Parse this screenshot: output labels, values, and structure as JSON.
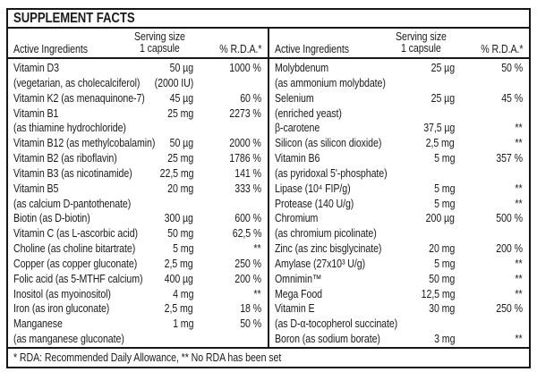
{
  "title": "SUPPLEMENT FACTS",
  "columns": {
    "ingredients": "Active Ingredients",
    "serving_line1": "Serving size",
    "serving_line2": "1 capsule",
    "rda": "% R.D.A.*"
  },
  "footnote": "* RDA: Recommended Daily Allowance, ** No RDA has been set",
  "colors": {
    "border": "#161616",
    "text": "#1b1b1b",
    "background": "#ffffff"
  },
  "left": {
    "rows": [
      {
        "name": "Vitamin D3",
        "amount": "50 µg",
        "rda": "1000 %"
      },
      {
        "name": "(vegetarian, as cholecalciferol)",
        "amount": "(2000 IU)",
        "rda": ""
      },
      {
        "name": "Vitamin K2 (as menaquinone-7)",
        "amount": "45 µg",
        "rda": "60 %"
      },
      {
        "name": "Vitamin B1",
        "amount": "25 mg",
        "rda": "2273 %"
      },
      {
        "name": "(as thiamine hydrochloride)",
        "amount": "",
        "rda": ""
      },
      {
        "name": "Vitamin B12 (as methylcobalamin)",
        "amount": "50 µg",
        "rda": "2000 %"
      },
      {
        "name": "Vitamin B2 (as riboflavin)",
        "amount": "25 mg",
        "rda": "1786 %"
      },
      {
        "name": "Vitamin B3 (as nicotinamide)",
        "amount": "22,5 mg",
        "rda": "141 %"
      },
      {
        "name": "Vitamin B5",
        "amount": "20 mg",
        "rda": "333 %"
      },
      {
        "name": "(as calcium D-pantothenate)",
        "amount": "",
        "rda": ""
      },
      {
        "name": "Biotin (as D-biotin)",
        "amount": "300 µg",
        "rda": "600 %"
      },
      {
        "name": "Vitamin C (as L-ascorbic acid)",
        "amount": "50 mg",
        "rda": "62,5 %"
      },
      {
        "name": "Choline (as choline bitartrate)",
        "amount": "5 mg",
        "rda": "**"
      },
      {
        "name": "Copper (as copper gluconate)",
        "amount": "2,5 mg",
        "rda": "250 %"
      },
      {
        "name": "Folic acid (as 5-MTHF calcium)",
        "amount": "400 µg",
        "rda": "200 %"
      },
      {
        "name": "Inositol (as myoinositol)",
        "amount": "4 mg",
        "rda": "**"
      },
      {
        "name": "Iron (as iron gluconate)",
        "amount": "2,5 mg",
        "rda": "18 %"
      },
      {
        "name": "Manganese",
        "amount": "1 mg",
        "rda": "50 %"
      },
      {
        "name": "(as manganese gluconate)",
        "amount": "",
        "rda": ""
      }
    ]
  },
  "right": {
    "rows": [
      {
        "name": "Molybdenum",
        "amount": "25 µg",
        "rda": "50 %"
      },
      {
        "name": "(as ammonium molybdate)",
        "amount": "",
        "rda": ""
      },
      {
        "name": "Selenium",
        "amount": "25 µg",
        "rda": "45 %"
      },
      {
        "name": "(enriched yeast)",
        "amount": "",
        "rda": ""
      },
      {
        "name": "β-carotene",
        "amount": "37,5 µg",
        "rda": "**"
      },
      {
        "name": "Silicon (as silicon dioxide)",
        "amount": "2,5 mg",
        "rda": "**"
      },
      {
        "name": "Vitamin B6",
        "amount": "5 mg",
        "rda": "357 %"
      },
      {
        "name": "(as pyridoxal 5'-phosphate)",
        "amount": "",
        "rda": ""
      },
      {
        "name": "Lipase (10⁴ FIP/g)",
        "amount": "5 mg",
        "rda": "**"
      },
      {
        "name": "Protease (140 U/g)",
        "amount": "5 mg",
        "rda": "**"
      },
      {
        "name": "Chromium",
        "amount": "200 µg",
        "rda": "500 %"
      },
      {
        "name": "(as chromium picolinate)",
        "amount": "",
        "rda": ""
      },
      {
        "name": "Zinc (as zinc bisglycinate)",
        "amount": "20 mg",
        "rda": "200 %"
      },
      {
        "name": "Amylase (27x10³ U/g)",
        "amount": "5 mg",
        "rda": "**"
      },
      {
        "name": "Omnimin™",
        "amount": "50 mg",
        "rda": "**"
      },
      {
        "name": "Mega Food",
        "amount": "12,5 mg",
        "rda": "**"
      },
      {
        "name": "Vitamin E",
        "amount": "30 mg",
        "rda": "250 %"
      },
      {
        "name": "(as D-α-tocopherol succinate)",
        "amount": "",
        "rda": ""
      },
      {
        "name": "Boron (as sodium borate)",
        "amount": "3 mg",
        "rda": "**"
      }
    ]
  }
}
